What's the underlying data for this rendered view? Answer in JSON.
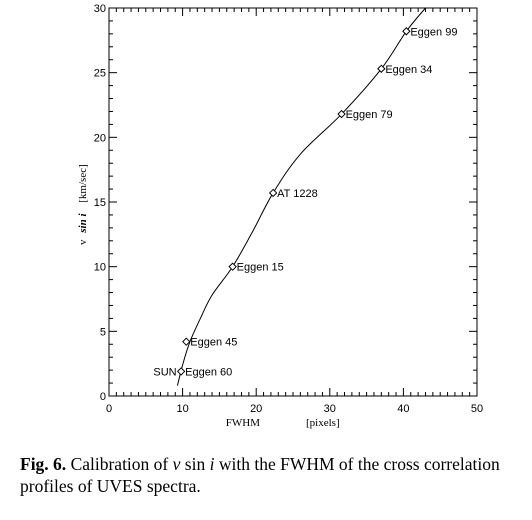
{
  "chart_data": {
    "type": "scatter",
    "xlabel": "FWHM",
    "xunit": "[pixels]",
    "ylabel_prefix": "v",
    "ylabel_italic": "sin i",
    "yunit": "[km/sec]",
    "xlim": [
      0,
      50
    ],
    "ylim": [
      0,
      30
    ],
    "x_ticks": [
      0,
      10,
      20,
      30,
      40,
      50
    ],
    "y_ticks": [
      0,
      5,
      10,
      15,
      20,
      25,
      30
    ],
    "points": [
      {
        "label": "SUN",
        "label_side": "left",
        "x": 9.6,
        "y": 1.9
      },
      {
        "label": "Eggen  60",
        "label_side": "right",
        "x": 9.8,
        "y": 1.9
      },
      {
        "label": "Eggen  45",
        "label_side": "right",
        "x": 10.5,
        "y": 4.2
      },
      {
        "label": "Eggen  15",
        "label_side": "right",
        "x": 16.8,
        "y": 10.0
      },
      {
        "label": "AT 1228",
        "label_side": "right",
        "x": 22.3,
        "y": 15.7
      },
      {
        "label": "Eggen  79",
        "label_side": "right",
        "x": 31.6,
        "y": 21.8
      },
      {
        "label": "Eggen  34",
        "label_side": "right",
        "x": 37.0,
        "y": 25.3
      },
      {
        "label": "Eggen  99",
        "label_side": "right",
        "x": 40.4,
        "y": 28.2
      }
    ],
    "fit_curve": {
      "x": [
        9.3,
        10.0,
        11.0,
        12.5,
        14.0,
        16.8,
        19.5,
        22.3,
        26.0,
        31.6,
        37.0,
        40.4,
        43.0
      ],
      "y": [
        0.8,
        2.4,
        4.2,
        6.1,
        7.8,
        10.0,
        12.7,
        15.7,
        18.7,
        21.8,
        25.3,
        28.2,
        30.0
      ]
    },
    "grid": false,
    "legend": "none"
  },
  "caption": {
    "label": "Fig. 6.",
    "text_before": " Calibration of ",
    "math_v": "v",
    "math_sin": " sin ",
    "math_i": "i",
    "text_after": " with the FWHM of the cross correlation profiles of UVES spectra."
  }
}
